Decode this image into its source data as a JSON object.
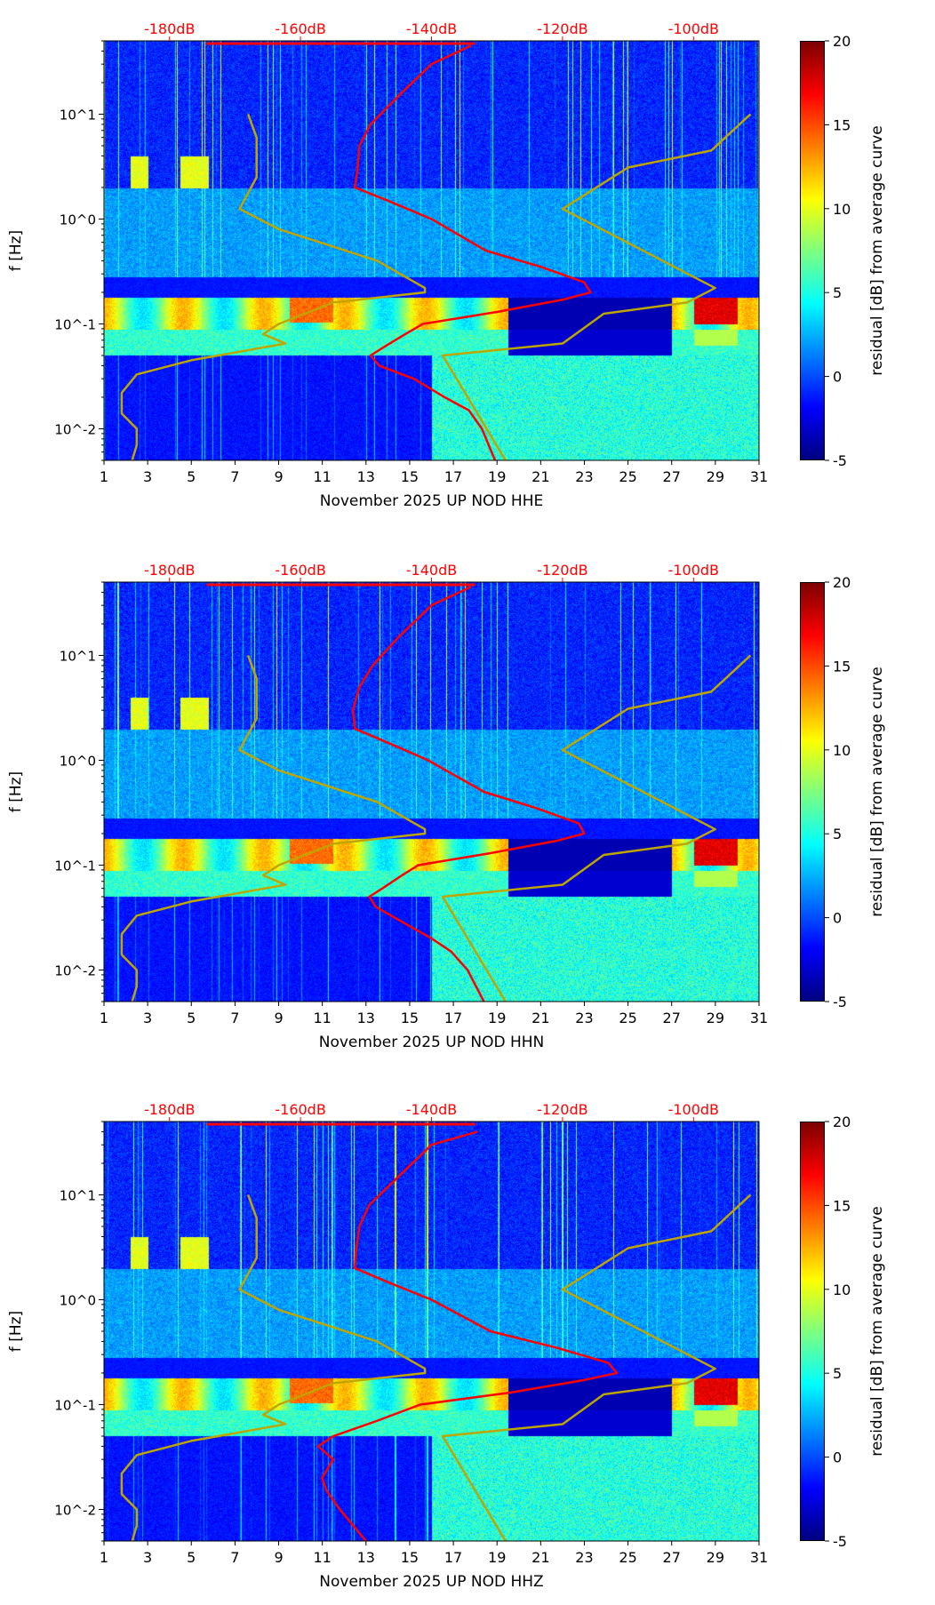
{
  "chart_data": [
    {
      "type": "heatmap",
      "title": "",
      "xlabel": "November 2025 UP NOD  HHE",
      "ylabel": "f [Hz]",
      "colorbar_label": "residual [dB] from average curve",
      "xlim": [
        1,
        31
      ],
      "ylim": [
        0.005,
        50
      ],
      "yscale": "log",
      "clim": [
        -5,
        20
      ],
      "x_ticks": [
        "1",
        "3",
        "5",
        "7",
        "9",
        "11",
        "13",
        "15",
        "17",
        "19",
        "21",
        "23",
        "25",
        "27",
        "29",
        "31"
      ],
      "y_ticks": [
        "10^-2",
        "10^-1",
        "10^0",
        "10^1"
      ],
      "colorbar_ticks": [
        "-5",
        "0",
        "5",
        "10",
        "15",
        "20"
      ],
      "top_axis": {
        "ticks": [
          "-180dB",
          "-160dB",
          "-140dB",
          "-120dB",
          "-100dB"
        ],
        "values": [
          -180,
          -160,
          -140,
          -120,
          -100
        ],
        "color": "#ff0000"
      },
      "mean_curve": {
        "color": "#ff0000",
        "f": [
          0.005,
          0.01,
          0.015,
          0.02,
          0.03,
          0.04,
          0.05,
          0.06,
          0.08,
          0.1,
          0.13,
          0.17,
          0.2,
          0.25,
          0.35,
          0.5,
          1,
          1.5,
          2,
          3,
          5,
          8,
          15,
          30,
          45
        ],
        "db": [
          -130.3,
          -132.3,
          -134.3,
          -138,
          -142.7,
          -148,
          -149.3,
          -147.3,
          -144,
          -141.3,
          -130,
          -120,
          -115.7,
          -116.7,
          -123.3,
          -131.7,
          -140,
          -146.7,
          -151.7,
          -151.3,
          -151,
          -149.3,
          -145,
          -140,
          -134
        ]
      },
      "peak": 0.2
    },
    {
      "type": "heatmap",
      "title": "",
      "xlabel": "November 2025 UP NOD  HHN",
      "ylabel": "f [Hz]",
      "colorbar_label": "residual [dB] from average curve",
      "xlim": [
        1,
        31
      ],
      "ylim": [
        0.005,
        50
      ],
      "yscale": "log",
      "clim": [
        -5,
        20
      ],
      "x_ticks": [
        "1",
        "3",
        "5",
        "7",
        "9",
        "11",
        "13",
        "15",
        "17",
        "19",
        "21",
        "23",
        "25",
        "27",
        "29",
        "31"
      ],
      "y_ticks": [
        "10^-2",
        "10^-1",
        "10^0",
        "10^1"
      ],
      "colorbar_ticks": [
        "-5",
        "0",
        "5",
        "10",
        "15",
        "20"
      ],
      "top_axis": {
        "ticks": [
          "-180dB",
          "-160dB",
          "-140dB",
          "-120dB",
          "-100dB"
        ],
        "values": [
          -180,
          -160,
          -140,
          -120,
          -100
        ],
        "color": "#ff0000"
      },
      "mean_curve": {
        "color": "#ff0000",
        "f": [
          0.005,
          0.01,
          0.015,
          0.02,
          0.03,
          0.04,
          0.05,
          0.06,
          0.08,
          0.1,
          0.13,
          0.17,
          0.2,
          0.25,
          0.35,
          0.5,
          1,
          1.5,
          2,
          3,
          5,
          8,
          15,
          30,
          45
        ],
        "db": [
          -132,
          -134.5,
          -137,
          -140,
          -145,
          -148.5,
          -149.5,
          -147.5,
          -144.5,
          -142,
          -131,
          -121,
          -116.7,
          -117.5,
          -124,
          -132,
          -140.5,
          -147,
          -151.7,
          -152,
          -151,
          -149,
          -145,
          -140,
          -134
        ]
      },
      "peak": 0.2
    },
    {
      "type": "heatmap",
      "title": "",
      "xlabel": "November 2025 UP NOD  HHZ",
      "ylabel": "f [Hz]",
      "colorbar_label": "residual [dB] from average curve",
      "xlim": [
        1,
        31
      ],
      "ylim": [
        0.005,
        50
      ],
      "yscale": "log",
      "clim": [
        -5,
        20
      ],
      "x_ticks": [
        "1",
        "3",
        "5",
        "7",
        "9",
        "11",
        "13",
        "15",
        "17",
        "19",
        "21",
        "23",
        "25",
        "27",
        "29",
        "31"
      ],
      "y_ticks": [
        "10^-2",
        "10^-1",
        "10^0",
        "10^1"
      ],
      "colorbar_ticks": [
        "-5",
        "0",
        "5",
        "10",
        "15",
        "20"
      ],
      "top_axis": {
        "ticks": [
          "-180dB",
          "-160dB",
          "-140dB",
          "-120dB",
          "-100dB"
        ],
        "values": [
          -180,
          -160,
          -140,
          -120,
          -100
        ],
        "color": "#ff0000"
      },
      "mean_curve": {
        "color": "#ff0000",
        "f": [
          0.005,
          0.01,
          0.015,
          0.02,
          0.03,
          0.04,
          0.05,
          0.07,
          0.1,
          0.13,
          0.17,
          0.2,
          0.25,
          0.35,
          0.5,
          1,
          1.5,
          2,
          3,
          5,
          8,
          15,
          30,
          40
        ],
        "db": [
          -150,
          -154,
          -156,
          -156.7,
          -155,
          -157.3,
          -155,
          -148.3,
          -141.7,
          -128,
          -117,
          -111.7,
          -113,
          -121,
          -131,
          -140,
          -147,
          -151.7,
          -151.5,
          -151,
          -149.5,
          -145,
          -140,
          -133
        ]
      },
      "peak": 0.2
    }
  ],
  "noise_models": {
    "color": "#bfa500",
    "low": {
      "f": [
        10,
        6,
        2.5,
        1.25,
        0.8,
        0.4,
        0.22,
        0.2,
        0.16,
        0.1,
        0.08,
        0.065,
        0.045,
        0.033,
        0.022,
        0.014,
        0.01,
        0.007,
        0.005
      ],
      "db": [
        -168,
        -166.7,
        -166.7,
        -169.3,
        -163.3,
        -148.3,
        -141,
        -141,
        -155,
        -163.3,
        -165.7,
        -162.3,
        -176.7,
        -185,
        -187.3,
        -187.3,
        -185,
        -185,
        -185.7
      ]
    },
    "high": {
      "f": [
        10,
        4.5,
        3.1,
        1.25,
        0.22,
        0.16,
        0.125,
        0.065,
        0.05,
        0.005
      ],
      "db": [
        -91.3,
        -97.3,
        -110,
        -120,
        -96.7,
        -101,
        -113.7,
        -120,
        -138.3,
        -128.7
      ]
    }
  }
}
